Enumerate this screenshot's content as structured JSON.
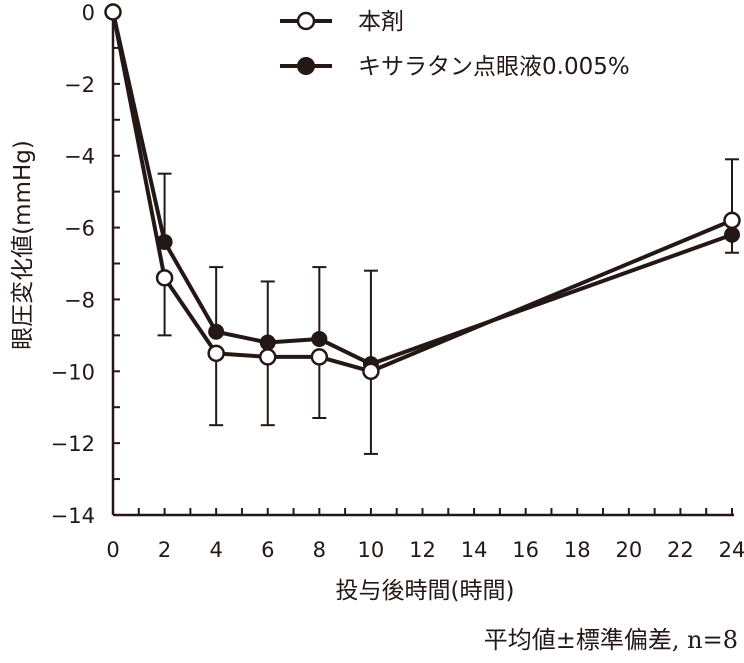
{
  "chart_data": {
    "type": "line",
    "title": "",
    "xlabel": "投与後時間(時間)",
    "ylabel": "眼圧変化値(mmHg)",
    "xlim": [
      0,
      24
    ],
    "ylim": [
      -14,
      0
    ],
    "xticks": [
      0,
      2,
      4,
      6,
      8,
      10,
      12,
      14,
      16,
      18,
      20,
      22,
      24
    ],
    "yticks": [
      0,
      -2,
      -4,
      -6,
      -8,
      -10,
      -12,
      -14
    ],
    "ytick_labels": [
      "0",
      "−2",
      "−4",
      "−6",
      "−8",
      "−10",
      "−12",
      "−14"
    ],
    "legend_position": "top",
    "footnote": "平均値±標準偏差, n=8",
    "series": [
      {
        "name": "本剤",
        "marker": "open-circle",
        "x": [
          0,
          2,
          4,
          6,
          8,
          10,
          24
        ],
        "y": [
          0,
          -7.4,
          -9.5,
          -9.6,
          -9.6,
          -10.0,
          -5.8
        ],
        "error_bar_ends": [
          null,
          -9.0,
          -11.5,
          -11.5,
          -11.3,
          -12.3,
          -4.1
        ]
      },
      {
        "name": "キサラタン点眼液0.005%",
        "marker": "filled-circle",
        "x": [
          0,
          2,
          4,
          6,
          8,
          10,
          24
        ],
        "y": [
          0,
          -6.4,
          -8.9,
          -9.2,
          -9.1,
          -9.8,
          -6.2
        ],
        "error_bar_ends": [
          null,
          -4.5,
          -7.1,
          -7.5,
          -7.1,
          -7.2,
          -6.7
        ]
      }
    ]
  }
}
